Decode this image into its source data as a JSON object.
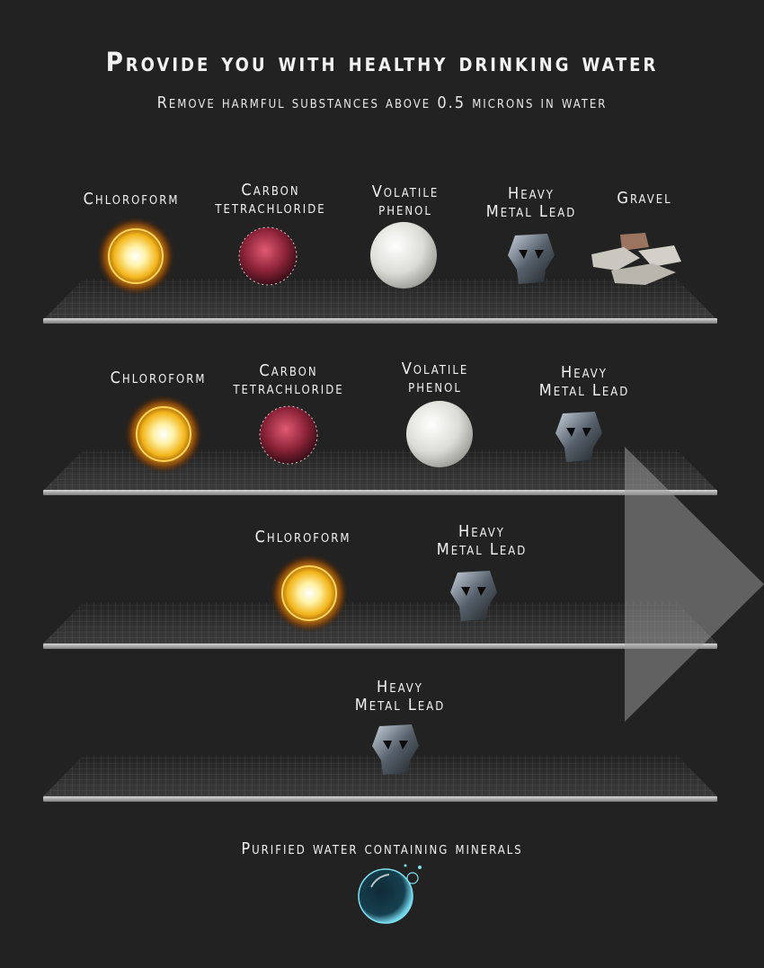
{
  "header": {
    "title": "Provide you with healthy drinking water",
    "subtitle": "Remove harmful substances above 0.5 microns in water"
  },
  "stages": [
    {
      "items": [
        {
          "type": "chloroform",
          "label": "Chloroform"
        },
        {
          "type": "carbon",
          "label": "Carbon\ntetrachloride"
        },
        {
          "type": "phenol",
          "label": "Volatile\nphenol"
        },
        {
          "type": "lead",
          "label": "Heavy\nMetal Lead"
        },
        {
          "type": "gravel",
          "label": "Gravel"
        }
      ]
    },
    {
      "items": [
        {
          "type": "chloroform",
          "label": "Chloroform"
        },
        {
          "type": "carbon",
          "label": "Carbon\ntetrachloride"
        },
        {
          "type": "phenol",
          "label": "Volatile\nphenol"
        },
        {
          "type": "lead",
          "label": "Heavy\nMetal Lead"
        }
      ]
    },
    {
      "items": [
        {
          "type": "chloroform",
          "label": "Chloroform"
        },
        {
          "type": "lead",
          "label": "Heavy\nMetal Lead"
        }
      ]
    },
    {
      "items": [
        {
          "type": "lead",
          "label": "Heavy\nMetal Lead"
        }
      ]
    }
  ],
  "result": {
    "label": "Purified water containing minerals"
  },
  "colors": {
    "background": "#222222",
    "text": "#f2f2f2",
    "arrow": "#a0a0a0"
  }
}
